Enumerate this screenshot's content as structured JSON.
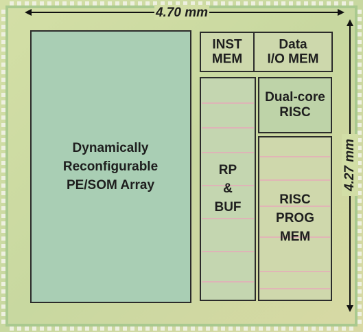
{
  "dimensions": {
    "width": "4.70 mm",
    "height": "4.27 mm"
  },
  "blocks": [
    {
      "lines": [
        "Dynamically",
        "Reconfigurable",
        "PE/SOM Array"
      ]
    },
    {
      "lines": [
        "INST",
        "MEM"
      ]
    },
    {
      "lines": [
        "Data",
        "I/O MEM"
      ]
    },
    {
      "lines": [
        "RP",
        "&",
        "BUF"
      ]
    },
    {
      "lines": [
        "Dual-core",
        "RISC"
      ]
    },
    {
      "lines": [
        "RISC",
        "PROG",
        "MEM"
      ]
    }
  ]
}
